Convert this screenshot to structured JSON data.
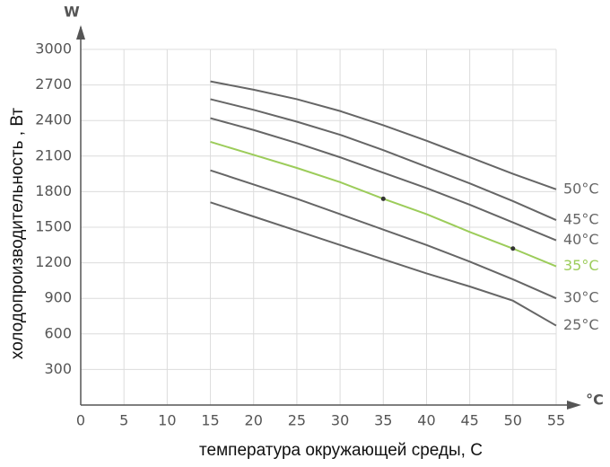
{
  "chart_data": {
    "type": "line",
    "x_label": "температура окружающей среды, С",
    "y_label": "холодопроизводительность  , Вт",
    "y_unit": "W",
    "x_unit": "°C",
    "x": [
      15,
      20,
      25,
      30,
      35,
      40,
      45,
      50,
      55
    ],
    "xlim": [
      0,
      55
    ],
    "xticks": [
      0,
      5,
      10,
      15,
      20,
      25,
      30,
      35,
      40,
      45,
      50,
      55
    ],
    "ylim": [
      0,
      3000
    ],
    "yticks": [
      300,
      600,
      900,
      1200,
      1500,
      1800,
      2100,
      2400,
      2700,
      3000
    ],
    "grid": true,
    "series": [
      {
        "name": "50°C",
        "color": "#666666",
        "values": [
          2730,
          2660,
          2580,
          2480,
          2360,
          2230,
          2090,
          1950,
          1820
        ]
      },
      {
        "name": "45°C",
        "color": "#666666",
        "values": [
          2580,
          2490,
          2390,
          2280,
          2150,
          2010,
          1870,
          1720,
          1560
        ]
      },
      {
        "name": "40°C",
        "color": "#666666",
        "values": [
          2420,
          2320,
          2210,
          2090,
          1960,
          1830,
          1690,
          1540,
          1390
        ]
      },
      {
        "name": "35°C",
        "color": "#9ccc5a",
        "values": [
          2220,
          2110,
          2000,
          1880,
          1740,
          1610,
          1460,
          1320,
          1170
        ],
        "markers": [
          4,
          7
        ]
      },
      {
        "name": "30°C",
        "color": "#666666",
        "values": [
          1980,
          1860,
          1740,
          1610,
          1480,
          1350,
          1210,
          1060,
          900
        ]
      },
      {
        "name": "25°C",
        "color": "#666666",
        "values": [
          1710,
          1590,
          1470,
          1350,
          1230,
          1110,
          1000,
          880,
          670
        ]
      }
    ]
  }
}
